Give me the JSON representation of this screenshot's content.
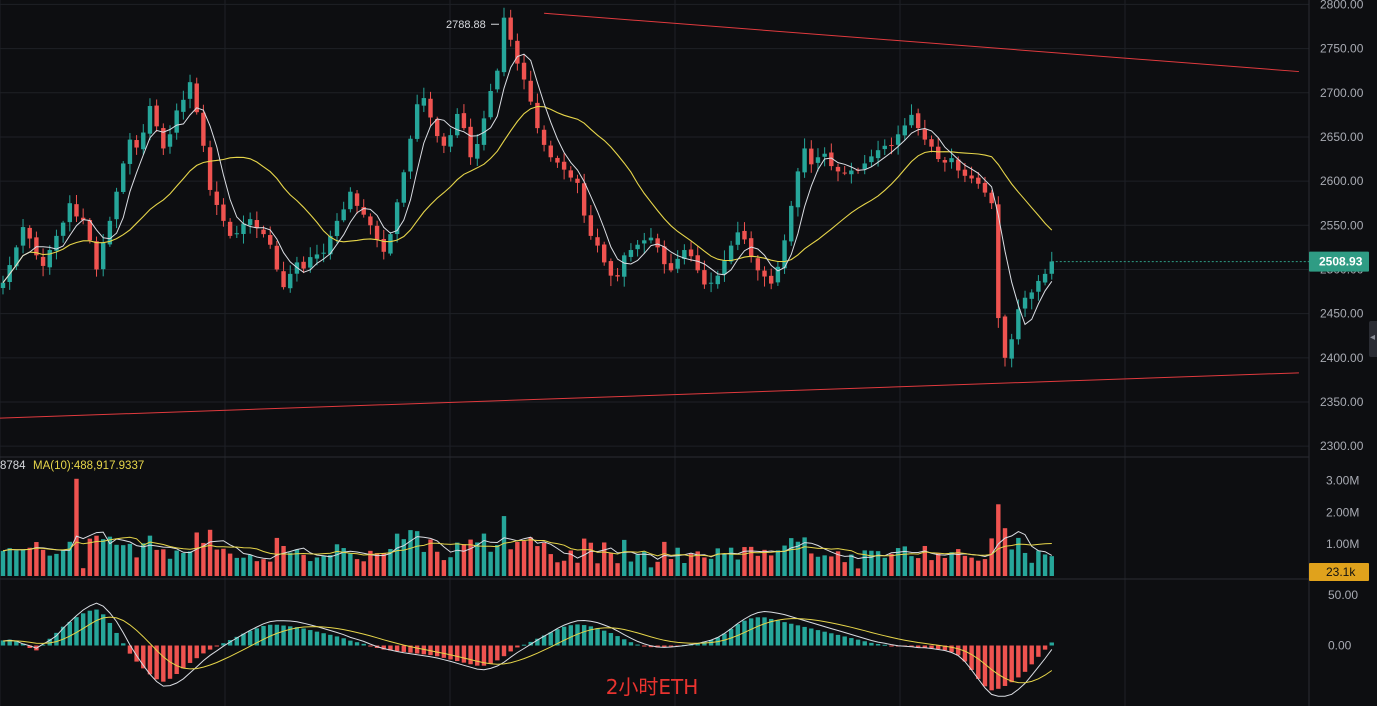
{
  "chart_data": {
    "type": "candlestick",
    "title": "",
    "caption": "2小时ETH",
    "price_axis": {
      "ticks": [
        "2800.00",
        "2750.00",
        "2700.00",
        "2650.00",
        "2600.00",
        "2550.00",
        "2500.00",
        "2450.00",
        "2400.00",
        "2350.00",
        "2300.00"
      ],
      "ylim": [
        2290,
        2805
      ]
    },
    "current_price": "2508.93",
    "high_label": "2788.88",
    "volume_legend": {
      "left_text": "8784",
      "ma10_text": "MA(10):488,917.9337"
    },
    "volume_axis": {
      "ticks": [
        "3.00M",
        "2.00M",
        "1.00M"
      ],
      "ylim": [
        0,
        3200000
      ]
    },
    "current_volume": "23.1k",
    "macd_axis": {
      "ticks": [
        "50.00",
        "0.00"
      ],
      "ylim": [
        -60,
        62
      ]
    },
    "trendlines": [
      {
        "from": [
          81,
          2790
        ],
        "to": [
          194,
          2724
        ],
        "color": "#e03a3e"
      },
      {
        "from": [
          -45,
          2320
        ],
        "to": [
          194,
          2383
        ],
        "color": "#e03a3e"
      }
    ],
    "closes": [
      2485,
      2505,
      2525,
      2548,
      2535,
      2516,
      2504,
      2522,
      2538,
      2553,
      2575,
      2560,
      2556,
      2533,
      2500,
      2530,
      2555,
      2588,
      2620,
      2647,
      2638,
      2655,
      2685,
      2662,
      2637,
      2653,
      2680,
      2692,
      2712,
      2678,
      2640,
      2590,
      2573,
      2555,
      2538,
      2541,
      2552,
      2557,
      2547,
      2540,
      2528,
      2500,
      2480,
      2495,
      2508,
      2501,
      2514,
      2517,
      2519,
      2538,
      2555,
      2568,
      2588,
      2572,
      2562,
      2550,
      2534,
      2520,
      2540,
      2576,
      2610,
      2648,
      2687,
      2694,
      2672,
      2651,
      2640,
      2652,
      2676,
      2660,
      2627,
      2642,
      2671,
      2702,
      2725,
      2785,
      2760,
      2733,
      2715,
      2690,
      2660,
      2641,
      2627,
      2621,
      2613,
      2604,
      2598,
      2561,
      2538,
      2527,
      2508,
      2493,
      2492,
      2516,
      2522,
      2528,
      2533,
      2536,
      2525,
      2506,
      2499,
      2512,
      2522,
      2515,
      2499,
      2483,
      2485,
      2493,
      2510,
      2527,
      2542,
      2534,
      2514,
      2499,
      2492,
      2484,
      2503,
      2533,
      2572,
      2611,
      2637,
      2619,
      2627,
      2631,
      2617,
      2611,
      2609,
      2612,
      2612,
      2620,
      2628,
      2635,
      2640,
      2640,
      2653,
      2663,
      2675,
      2660,
      2647,
      2639,
      2625,
      2621,
      2626,
      2612,
      2606,
      2603,
      2597,
      2587,
      2575,
      2445,
      2400,
      2421,
      2455,
      2468,
      2474,
      2487,
      2495,
      2509
    ],
    "macd": [
      5,
      6,
      4,
      -2,
      -5,
      3,
      10,
      18,
      24,
      30,
      34,
      36,
      30,
      18,
      5,
      -8,
      -18,
      -26,
      -33,
      -36,
      -32,
      -25,
      -18,
      -12,
      -6,
      -2,
      2,
      6,
      10,
      14,
      17,
      20,
      21,
      20,
      19,
      18,
      16,
      14,
      12,
      10,
      8,
      5,
      3,
      1,
      -2,
      -4,
      -5,
      -6,
      -7,
      -8,
      -9,
      -10,
      -12,
      -14,
      -16,
      -18,
      -20,
      -20,
      -17,
      -12,
      -6,
      -1,
      2,
      6,
      10,
      14,
      18,
      20,
      21,
      20,
      18,
      15,
      12,
      8,
      4,
      1,
      -1,
      -2,
      -2,
      -1,
      0,
      1,
      2,
      4,
      6,
      10,
      16,
      22,
      26,
      28,
      28,
      26,
      24,
      22,
      20,
      18,
      16,
      14,
      12,
      10,
      8,
      6,
      4,
      2,
      1,
      0,
      -1,
      -1,
      -2,
      -2,
      -3,
      -4,
      -6,
      -10,
      -18,
      -30,
      -40,
      -45,
      -42,
      -38,
      -32,
      -25,
      -15,
      -6,
      3
    ]
  },
  "colors": {
    "up": "#26a69a",
    "down": "#ef5350",
    "ma_fast": "#dadde3",
    "ma_slow": "#e6d54a",
    "grid": "#1e2026",
    "trend": "#e03a3e",
    "price_tag": "#2f9c84",
    "vol_tag": "#e0a21c",
    "caption": "#e8332f"
  }
}
